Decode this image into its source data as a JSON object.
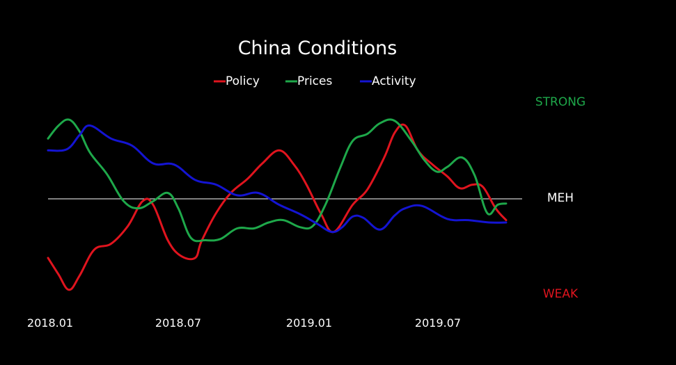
{
  "colors": {
    "background": "#000000",
    "policy": "#e0141e",
    "prices": "#1ea84a",
    "activity": "#1414d2",
    "baseline": "#ffffff",
    "strong": "#1ea84a",
    "meh": "#ffffff",
    "weak": "#e0141e"
  },
  "chart_data": {
    "type": "line",
    "title": "China Conditions",
    "xlabel": "",
    "ylabel": "",
    "x_tick_labels": [
      "2018.01",
      "2018.07",
      "2019.01",
      "2019.07"
    ],
    "zone_labels": {
      "strong": "STRONG",
      "meh": "MEH",
      "weak": "WEAK"
    },
    "ylim": [
      -1,
      1
    ],
    "xlim": [
      0,
      22
    ],
    "x_unit": "months since 2018.01",
    "legend_position": "top-center",
    "grid": false,
    "series": [
      {
        "name": "Policy",
        "points": [
          [
            0.0,
            -0.5
          ],
          [
            0.5,
            -0.64
          ],
          [
            1.0,
            -0.77
          ],
          [
            1.5,
            -0.65
          ],
          [
            2.2,
            -0.43
          ],
          [
            3.0,
            -0.38
          ],
          [
            3.8,
            -0.23
          ],
          [
            4.5,
            -0.02
          ],
          [
            5.0,
            -0.05
          ],
          [
            5.7,
            -0.35
          ],
          [
            6.3,
            -0.48
          ],
          [
            7.0,
            -0.5
          ],
          [
            7.3,
            -0.36
          ],
          [
            8.0,
            -0.12
          ],
          [
            8.7,
            0.05
          ],
          [
            9.5,
            0.17
          ],
          [
            10.2,
            0.3
          ],
          [
            11.0,
            0.41
          ],
          [
            11.7,
            0.29
          ],
          [
            12.3,
            0.12
          ],
          [
            13.0,
            -0.13
          ],
          [
            13.6,
            -0.28
          ],
          [
            14.5,
            -0.05
          ],
          [
            15.2,
            0.08
          ],
          [
            16.0,
            0.35
          ],
          [
            16.5,
            0.56
          ],
          [
            17.0,
            0.62
          ],
          [
            17.6,
            0.41
          ],
          [
            18.3,
            0.29
          ],
          [
            19.0,
            0.19
          ],
          [
            19.6,
            0.09
          ],
          [
            20.2,
            0.12
          ],
          [
            20.7,
            0.1
          ],
          [
            21.3,
            -0.08
          ],
          [
            21.8,
            -0.18
          ]
        ]
      },
      {
        "name": "Prices",
        "points": [
          [
            0.0,
            0.51
          ],
          [
            0.5,
            0.62
          ],
          [
            1.0,
            0.67
          ],
          [
            1.5,
            0.57
          ],
          [
            2.0,
            0.39
          ],
          [
            2.8,
            0.21
          ],
          [
            3.6,
            -0.02
          ],
          [
            4.3,
            -0.08
          ],
          [
            5.0,
            -0.02
          ],
          [
            5.7,
            0.05
          ],
          [
            6.2,
            -0.08
          ],
          [
            6.8,
            -0.33
          ],
          [
            7.5,
            -0.35
          ],
          [
            8.2,
            -0.34
          ],
          [
            9.0,
            -0.25
          ],
          [
            9.8,
            -0.25
          ],
          [
            10.5,
            -0.2
          ],
          [
            11.2,
            -0.18
          ],
          [
            12.0,
            -0.24
          ],
          [
            12.6,
            -0.23
          ],
          [
            13.2,
            -0.05
          ],
          [
            13.9,
            0.26
          ],
          [
            14.5,
            0.49
          ],
          [
            15.2,
            0.55
          ],
          [
            15.8,
            0.64
          ],
          [
            16.5,
            0.66
          ],
          [
            17.3,
            0.49
          ],
          [
            17.9,
            0.33
          ],
          [
            18.5,
            0.23
          ],
          [
            19.0,
            0.27
          ],
          [
            19.7,
            0.35
          ],
          [
            20.3,
            0.2
          ],
          [
            20.9,
            -0.12
          ],
          [
            21.4,
            -0.05
          ],
          [
            21.8,
            -0.04
          ]
        ]
      },
      {
        "name": "Activity",
        "points": [
          [
            0.0,
            0.41
          ],
          [
            0.9,
            0.42
          ],
          [
            1.5,
            0.54
          ],
          [
            2.0,
            0.62
          ],
          [
            3.0,
            0.51
          ],
          [
            4.0,
            0.45
          ],
          [
            5.0,
            0.3
          ],
          [
            6.0,
            0.29
          ],
          [
            7.0,
            0.16
          ],
          [
            8.0,
            0.12
          ],
          [
            9.0,
            0.03
          ],
          [
            10.0,
            0.05
          ],
          [
            11.0,
            -0.05
          ],
          [
            12.0,
            -0.13
          ],
          [
            12.8,
            -0.21
          ],
          [
            13.5,
            -0.28
          ],
          [
            14.0,
            -0.24
          ],
          [
            14.5,
            -0.15
          ],
          [
            15.0,
            -0.16
          ],
          [
            15.8,
            -0.26
          ],
          [
            16.5,
            -0.14
          ],
          [
            17.0,
            -0.08
          ],
          [
            17.8,
            -0.06
          ],
          [
            19.0,
            -0.17
          ],
          [
            20.0,
            -0.18
          ],
          [
            21.0,
            -0.2
          ],
          [
            21.8,
            -0.2
          ]
        ]
      }
    ]
  }
}
